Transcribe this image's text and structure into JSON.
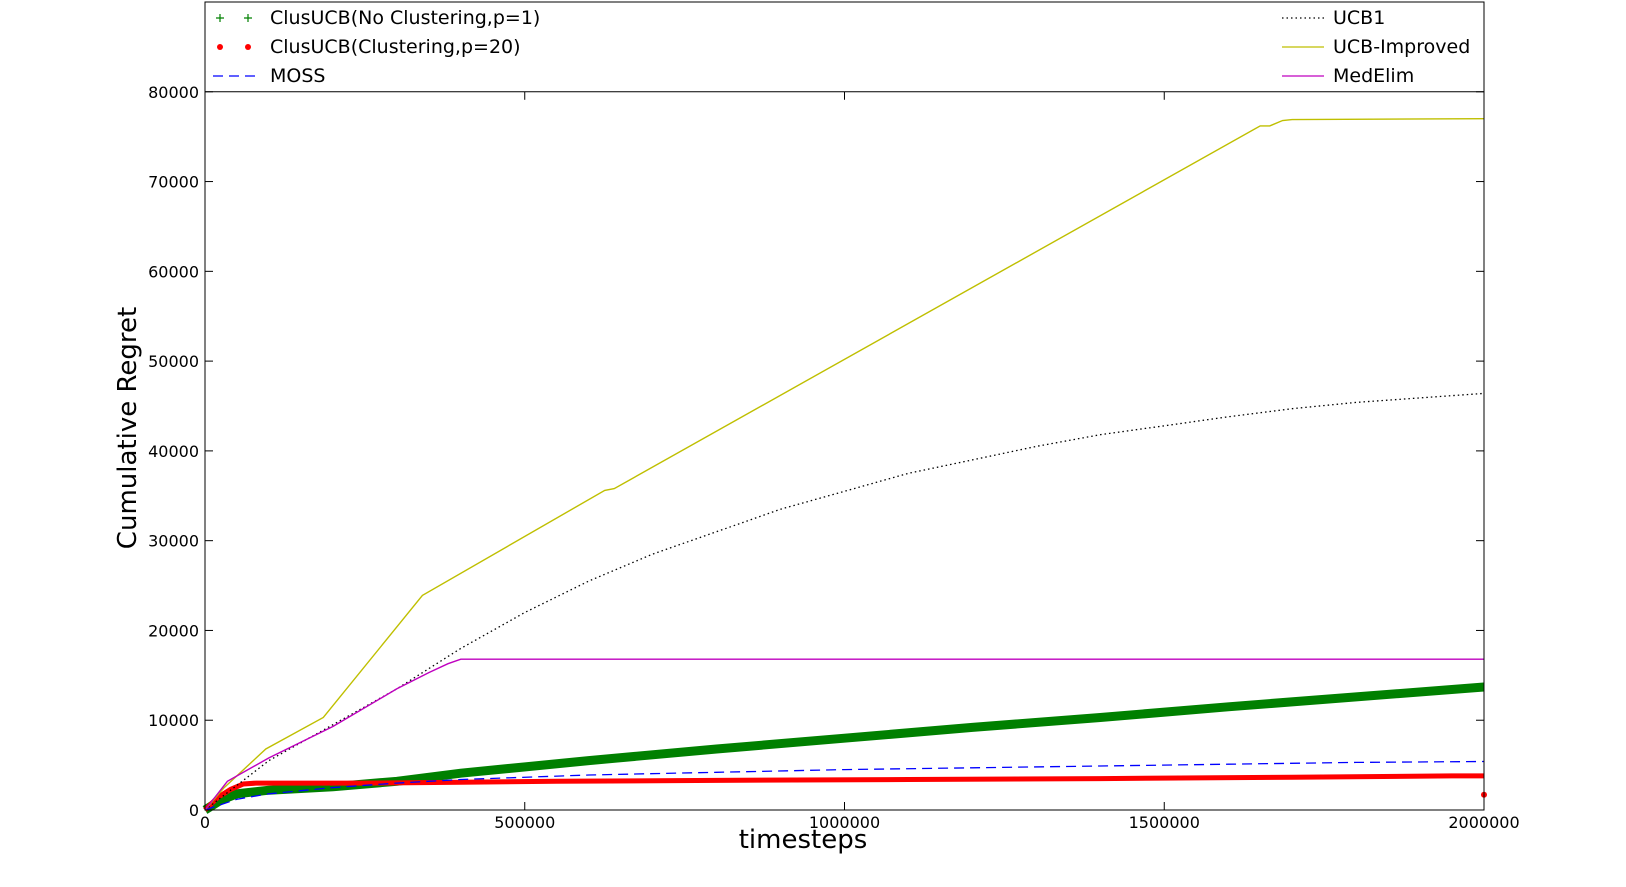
{
  "chart_data": {
    "type": "line",
    "title": "",
    "xlabel": "timesteps",
    "ylabel": "Cumulative Regret",
    "xlim": [
      0,
      2000000
    ],
    "ylim": [
      0,
      80000
    ],
    "legend_top_extent": 90000,
    "xticks": [
      0,
      500000,
      1000000,
      1500000,
      2000000
    ],
    "xtick_labels": [
      "0",
      "500000",
      "1000000",
      "1500000",
      "2000000"
    ],
    "yticks": [
      0,
      10000,
      20000,
      30000,
      40000,
      50000,
      60000,
      70000,
      80000
    ],
    "ytick_labels": [
      "0",
      "10000",
      "20000",
      "30000",
      "40000",
      "50000",
      "60000",
      "70000",
      "80000"
    ],
    "grid": false,
    "legend_placement": "top",
    "series": [
      {
        "name": "ClusUCB(No Clustering,p=1)",
        "color": "#008000",
        "style": "plus-markers",
        "x": [
          0,
          25000,
          50000,
          100000,
          200000,
          300000,
          400000,
          600000,
          800000,
          1000000,
          1200000,
          1400000,
          1600000,
          1800000,
          2000000
        ],
        "y": [
          0,
          1100,
          1800,
          2200,
          2600,
          3200,
          4100,
          5500,
          6800,
          8000,
          9200,
          10300,
          11500,
          12600,
          13700
        ]
      },
      {
        "name": "ClusUCB(Clustering,p=20)",
        "color": "#ff0000",
        "style": "dot-markers",
        "x": [
          0,
          20000,
          40000,
          60000,
          80000,
          150000,
          250000,
          400000,
          550000,
          800000,
          1100000,
          1400000,
          1700000,
          1950000,
          2000000
        ],
        "y": [
          0,
          1400,
          2300,
          2900,
          3000,
          3000,
          3000,
          3100,
          3200,
          3300,
          3400,
          3500,
          3650,
          3800,
          3800
        ]
      },
      {
        "name": "MOSS",
        "color": "#0000ff",
        "style": "dashed",
        "x": [
          0,
          50000,
          100000,
          200000,
          300000,
          400000,
          600000,
          800000,
          1000000,
          1200000,
          1400000,
          1600000,
          1800000,
          2000000
        ],
        "y": [
          0,
          1200,
          1800,
          2500,
          3000,
          3400,
          3900,
          4200,
          4500,
          4700,
          4900,
          5100,
          5300,
          5400
        ]
      },
      {
        "name": "UCB1",
        "color": "#000000",
        "style": "dotted",
        "x": [
          0,
          100000,
          200000,
          300000,
          400000,
          500000,
          600000,
          700000,
          800000,
          900000,
          1000000,
          1100000,
          1200000,
          1300000,
          1400000,
          1500000,
          1600000,
          1700000,
          1800000,
          1900000,
          2000000
        ],
        "y": [
          0,
          5500,
          9500,
          13500,
          18000,
          22000,
          25500,
          28500,
          31000,
          33500,
          35500,
          37500,
          39000,
          40500,
          41800,
          42800,
          43800,
          44700,
          45400,
          45900,
          46400
        ]
      },
      {
        "name": "UCB-Improved",
        "color": "#bfbf00",
        "style": "solid",
        "x": [
          0,
          30000,
          95000,
          185000,
          340000,
          625000,
          640000,
          1650000,
          1665000,
          1685000,
          1700000,
          2000000
        ],
        "y": [
          0,
          2500,
          6800,
          10300,
          23900,
          35600,
          35800,
          76200,
          76200,
          76800,
          76900,
          77000
        ]
      },
      {
        "name": "MedElim",
        "color": "#bf00bf",
        "style": "solid",
        "x": [
          0,
          35000,
          100000,
          200000,
          300000,
          350000,
          380000,
          400000,
          2000000
        ],
        "y": [
          0,
          3200,
          5800,
          9300,
          13500,
          15300,
          16300,
          16800,
          16800
        ]
      }
    ]
  }
}
